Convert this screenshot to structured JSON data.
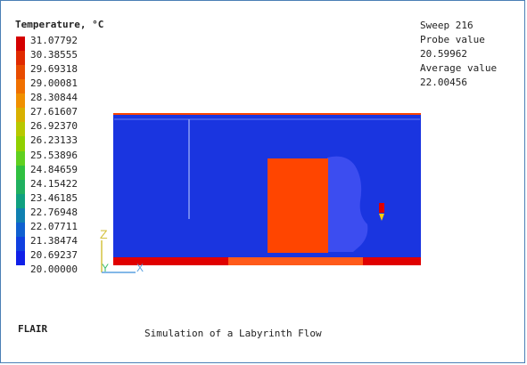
{
  "legend": {
    "title": "Temperature, °C",
    "labels": [
      "31.07792",
      "30.38555",
      "29.69318",
      "29.00081",
      "28.30844",
      "27.61607",
      "26.92370",
      "26.23133",
      "25.53896",
      "24.84659",
      "24.15422",
      "23.46185",
      "22.76948",
      "22.07711",
      "21.38474",
      "20.69237",
      "20.00000"
    ],
    "colors": [
      "#d40000",
      "#e02a00",
      "#e84c00",
      "#f07000",
      "#f09000",
      "#d8b000",
      "#b8c800",
      "#90d000",
      "#60d020",
      "#30c040",
      "#20b060",
      "#10a080",
      "#1080b0",
      "#1060d0",
      "#1040e0",
      "#1020e8"
    ]
  },
  "info": {
    "sweep": "Sweep 216",
    "probe_label": "Probe value",
    "probe_value": "20.59962",
    "average_label": "Average value",
    "average_value": "22.00456"
  },
  "axes": {
    "z": "Z",
    "y": "Y",
    "x": "X"
  },
  "footer": {
    "brand": "FLAIR",
    "caption": "Simulation of a Labyrinth Flow"
  },
  "colors": {
    "domain": "#1a35e0",
    "block": "#ff4500",
    "plume": "#3c4df0",
    "floor_red": "#e00000",
    "floor_orange": "#ff5a1a",
    "frame": "#4a7fb5"
  }
}
